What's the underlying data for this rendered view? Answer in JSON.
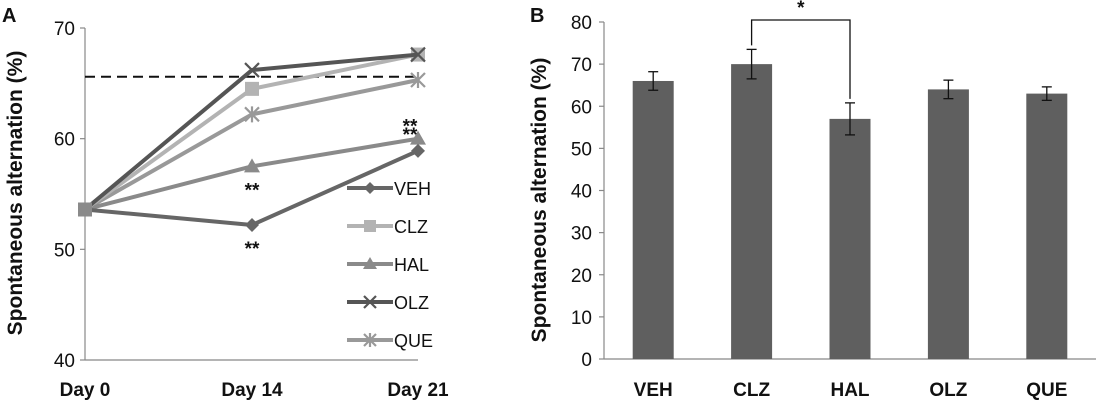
{
  "chart_data": [
    {
      "panel": "A",
      "type": "line",
      "ylabel": "Spontaneous alternation (%)",
      "xlabel": "",
      "categories": [
        "Day 0",
        "Day 14",
        "Day 21"
      ],
      "ylim": [
        40,
        70
      ],
      "yticks": [
        40,
        50,
        60,
        70
      ],
      "reference_line": 65.6,
      "legend_position": "right",
      "series": [
        {
          "name": "VEH",
          "values": [
            53.6,
            52.2,
            58.9
          ],
          "marker": "diamond",
          "color": "#666666"
        },
        {
          "name": "CLZ",
          "values": [
            53.6,
            64.5,
            67.6
          ],
          "marker": "square",
          "color": "#b3b3b3"
        },
        {
          "name": "HAL",
          "values": [
            53.6,
            57.5,
            60.0
          ],
          "marker": "triangle",
          "color": "#8a8a8a"
        },
        {
          "name": "OLZ",
          "values": [
            53.6,
            66.2,
            67.6
          ],
          "marker": "x",
          "color": "#555555"
        },
        {
          "name": "QUE",
          "values": [
            53.6,
            62.2,
            65.3
          ],
          "marker": "star",
          "color": "#999999"
        }
      ],
      "annotations": [
        {
          "text": "**",
          "category": "Day 14",
          "series": "HAL"
        },
        {
          "text": "**",
          "category": "Day 14",
          "series": "VEH"
        },
        {
          "text": "**",
          "category": "Day 21",
          "series": "HAL"
        },
        {
          "text": "**",
          "category": "Day 21",
          "series": "VEH"
        }
      ]
    },
    {
      "panel": "B",
      "type": "bar",
      "ylabel": "Spontaneous alternation (%)",
      "xlabel": "",
      "categories": [
        "VEH",
        "CLZ",
        "HAL",
        "OLZ",
        "QUE"
      ],
      "values": [
        66,
        70,
        57,
        64,
        63
      ],
      "errors": [
        2.2,
        3.5,
        3.8,
        2.2,
        1.6
      ],
      "ylim": [
        0,
        80
      ],
      "yticks": [
        0,
        10,
        20,
        30,
        40,
        50,
        60,
        70,
        80
      ],
      "color": "#5f5f5f",
      "significance": {
        "from": "CLZ",
        "to": "HAL",
        "label": "*"
      }
    }
  ]
}
